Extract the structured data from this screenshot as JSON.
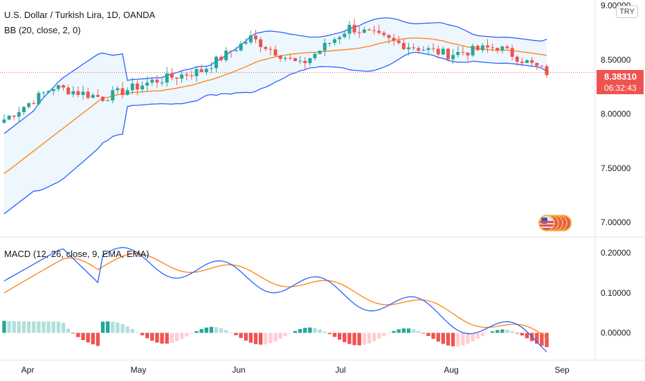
{
  "header": {
    "title": "U.S. Dollar / Turkish Lira, 1D, OANDA",
    "bb_legend": "BB (20, close, 2, 0)",
    "macd_legend": "MACD (12, 26, close, 9, EMA, EMA)",
    "currency_button": "TRY"
  },
  "last_price": {
    "value": "8.38310",
    "countdown": "06:32:43"
  },
  "colors": {
    "up": "#26a69a",
    "down": "#ef5350",
    "bb_basis": "#ff7f0e",
    "bb_band": "#2962ff",
    "macd_line": "#2962ff",
    "signal_line": "#ff7f0e",
    "hist_pos_strong": "#26a69a",
    "hist_pos_weak": "#b2dfdb",
    "hist_neg_strong": "#ef5350",
    "hist_neg_weak": "#ffcdd2"
  },
  "chart_data": [
    {
      "type": "candlestick",
      "title": "U.S. Dollar / Turkish Lira, 1D, OANDA",
      "series": [
        {
          "name": "USD/TRY",
          "x_dates": [
            "2021-03-24",
            "2021-04-07",
            "2021-04-21",
            "2021-05-05",
            "2021-05-19",
            "2021-06-02",
            "2021-06-16",
            "2021-06-30",
            "2021-07-14",
            "2021-07-28",
            "2021-08-11",
            "2021-08-27"
          ],
          "close": [
            7.95,
            8.25,
            8.15,
            8.3,
            8.4,
            8.7,
            8.45,
            8.8,
            8.65,
            8.55,
            8.62,
            8.3831
          ]
        }
      ],
      "y_ticks": [
        "7.00000",
        "7.50000",
        "8.00000",
        "8.50000",
        "9.00000"
      ],
      "x_ticks": [
        "Apr",
        "May",
        "Jun",
        "Jul",
        "Aug",
        "Sep"
      ],
      "ylim": [
        6.88,
        9.0
      ],
      "last_value": 8.3831
    },
    {
      "type": "line",
      "title": "MACD (12, 26, close, 9, EMA, EMA)",
      "series": [],
      "y_ticks": [
        "0.00000",
        "0.10000",
        "0.20000"
      ],
      "ylim": [
        -0.065,
        0.235
      ]
    }
  ]
}
